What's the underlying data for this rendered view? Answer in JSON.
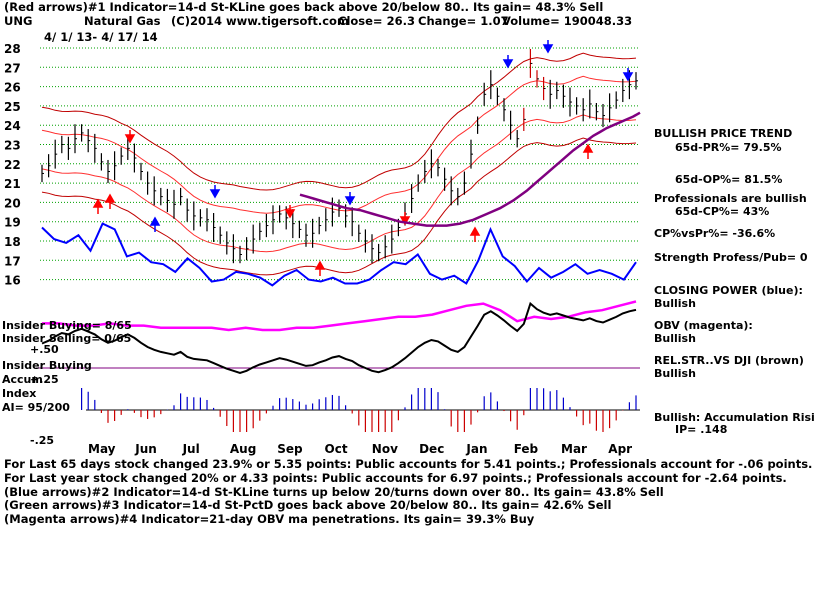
{
  "header": {
    "line1": "(Red arrows)#1 Indicator=14-d St-KLine goes back above 20/below 80.. Its gain= 48.3% Sell",
    "ticker": "UNG",
    "name": "Natural Gas",
    "copyright": "(C)2014 www.tigersoft.com",
    "close": "Close=  26.3",
    "change": "Change= 1.07",
    "volume": "Volume= 190048.33",
    "date_range": "4/ 1/ 13-  4/ 17/ 14"
  },
  "right_panel": {
    "trend_title": "BULLISH PRICE TREND",
    "pr": "65d-PR%= 79.5%",
    "op": "65d-OP%= 81.5%",
    "professionals": "Professionals are bullish",
    "cp": "65d-CP%= 43%",
    "cpvspr": "CP%vsPr%= -36.6%",
    "strength": "Strength Profess/Pub= 0",
    "closing_power_label": "CLOSING POWER (blue):",
    "closing_power_value": "Bullish",
    "obv_label": "OBV (magenta):",
    "obv_value": "Bullish",
    "relstr_label": "REL.STR..VS DJI (brown)",
    "relstr_value": "Bullish",
    "accum_label": "Bullish: Accumulation Risi",
    "ip": "IP=  .148"
  },
  "left_labels": {
    "insider_buying_count": "Insider Buying= 8/65",
    "insider_selling_count": "Insider Selling= 0/65",
    "plus50": "+.50",
    "insider_buying": "Insider Buying",
    "accum": "Accum",
    "plus25": "+.25",
    "index": "Index",
    "ai": "AI= 95/200",
    "minus25": "-.25"
  },
  "footer": {
    "line1": "For Last 65 days stock changed  23.9% or  5.35 points:  Public accounts for  5.41 points.;  Professionals account for -.06 points.",
    "line2": "For Last year stock changed  20% or  4.33 points:  Public accounts for  6.97 points.;  Professionals account for -2.64 points.",
    "line3": "(Blue arrows)#2 Indicator=14-d St-KLine turns up below 20/turns down over 80.. Its gain= 43.8% Sell",
    "line4": "(Green arrows)#3 Indicator=14-d St-PctD goes back above 20/below 80.. Its gain= 42.6% Sell",
    "line5": "(Magenta arrows)#4 Indicator=21-day OBV ma penetrations. Its gain= 39.3% Buy"
  },
  "colors": {
    "price": "#000000",
    "upper_band": "#c00000",
    "inner_band": "#ff3030",
    "ma65": "#800080",
    "closing_power": "#0000ff",
    "obv": "#ff00ff",
    "relstr": "#000000",
    "accum_pos": "#0000cc",
    "accum_neg": "#cc0000",
    "grid": "#00a000"
  },
  "chart_data": {
    "type": "line",
    "title": "",
    "ylabel": "",
    "ylim": [
      15,
      28.5
    ],
    "y_ticks": [
      16,
      17,
      18,
      19,
      20,
      21,
      22,
      23,
      24,
      25,
      26,
      27,
      28
    ],
    "month_labels": [
      "May",
      "Jun",
      "Jul",
      "Aug",
      "Sep",
      "Oct",
      "Nov",
      "Dec",
      "Jan",
      "Feb",
      "Mar",
      "Apr"
    ],
    "series": [
      {
        "key": "price",
        "values": [
          21.5,
          21.9,
          22.5,
          23.0,
          22.8,
          23.3,
          23.6,
          23.2,
          22.8,
          22.1,
          21.6,
          21.9,
          22.4,
          22.8,
          22.3,
          21.6,
          21.0,
          20.6,
          20.3,
          20.1,
          19.9,
          20.3,
          19.6,
          19.3,
          19.2,
          19.1,
          18.7,
          18.3,
          17.9,
          17.6,
          17.3,
          17.6,
          18.1,
          18.5,
          18.8,
          19.1,
          19.4,
          19.2,
          18.9,
          18.6,
          18.3,
          18.4,
          18.8,
          19.1,
          19.5,
          19.7,
          19.3,
          19.0,
          18.4,
          18.0,
          17.6,
          17.4,
          17.7,
          18.1,
          18.7,
          19.4,
          20.2,
          21.0,
          21.6,
          22.0,
          21.8,
          21.2,
          20.6,
          20.3,
          21.0,
          22.5,
          24.0,
          25.6,
          26.1,
          25.5,
          24.8,
          24.0,
          23.3,
          24.3,
          27.2,
          26.4,
          25.9,
          25.6,
          25.8,
          25.5,
          25.2,
          25.0,
          24.8,
          25.1,
          24.7,
          24.5,
          24.9,
          25.3,
          25.8,
          26.1,
          26.3
        ]
      },
      {
        "key": "ma65",
        "values": [
          20.4,
          20.3,
          20.2,
          20.1,
          20.0,
          19.9,
          19.8,
          19.7,
          19.65,
          19.6,
          19.5,
          19.4,
          19.3,
          19.2,
          19.1,
          19.0,
          18.95,
          18.9,
          18.85,
          18.8,
          18.8,
          18.8,
          18.8,
          18.85,
          18.9,
          19.0,
          19.1,
          19.25,
          19.4,
          19.55,
          19.7,
          19.9,
          20.1,
          20.35,
          20.6,
          20.9,
          21.2,
          21.5,
          21.8,
          22.1,
          22.4,
          22.7,
          22.95,
          23.2,
          23.45,
          23.65,
          23.85,
          24.0,
          24.15,
          24.3,
          24.45,
          24.65
        ]
      },
      {
        "key": "closing_power",
        "values": [
          18.7,
          18.1,
          17.9,
          18.3,
          17.5,
          18.9,
          18.6,
          17.2,
          17.4,
          16.9,
          16.8,
          16.4,
          17.1,
          16.6,
          15.9,
          16.0,
          16.4,
          16.3,
          16.1,
          15.7,
          16.2,
          16.5,
          16.0,
          15.9,
          16.1,
          15.8,
          15.8,
          16.0,
          16.5,
          16.9,
          16.8,
          17.3,
          16.3,
          16.0,
          16.2,
          15.8,
          17.0,
          18.6,
          17.2,
          16.7,
          15.9,
          16.6,
          16.1,
          16.4,
          16.8,
          16.3,
          16.5,
          16.3,
          16.0,
          16.9
        ]
      },
      {
        "key": "obv",
        "values": [
          15.0,
          15.0,
          14.9,
          14.9,
          15.0,
          14.9,
          14.9,
          14.8,
          14.8,
          14.8,
          14.8,
          14.7,
          14.8,
          14.7,
          14.7,
          14.8,
          14.8,
          14.9,
          15.0,
          15.1,
          15.2,
          15.3,
          15.3,
          15.4,
          15.6,
          15.8,
          15.9,
          15.6,
          15.1,
          15.3,
          15.2,
          15.3,
          15.5,
          15.6,
          15.8,
          16.0
        ]
      }
    ]
  }
}
